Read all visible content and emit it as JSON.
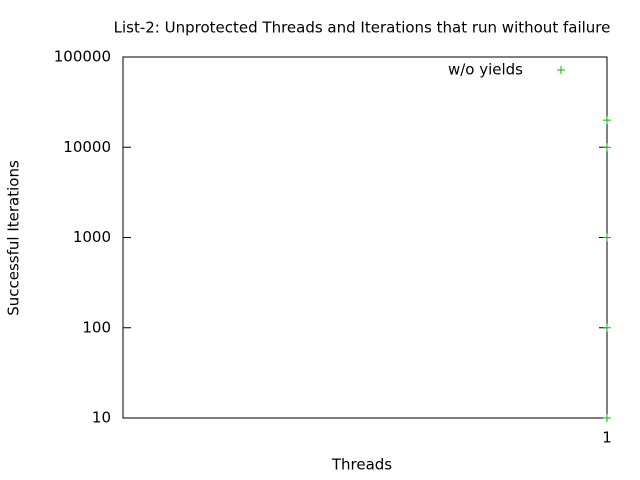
{
  "chart_data": {
    "type": "scatter",
    "title": "List-2: Unprotected Threads and Iterations that run without failure",
    "x_label": "Threads",
    "y_label": "Successful Iterations",
    "series": [
      {
        "name": "w/o yields",
        "color": "#00c000",
        "x": [
          1,
          1,
          1,
          1,
          1
        ],
        "values": [
          20000,
          10000,
          1000,
          100,
          10
        ]
      }
    ],
    "xlim": [
      0,
      1
    ],
    "xticks": [
      1
    ],
    "ylim": [
      10,
      100000
    ],
    "yticks": [
      10,
      100,
      1000,
      10000,
      100000
    ],
    "y_log": true,
    "grid": false,
    "legend": "top-right"
  }
}
